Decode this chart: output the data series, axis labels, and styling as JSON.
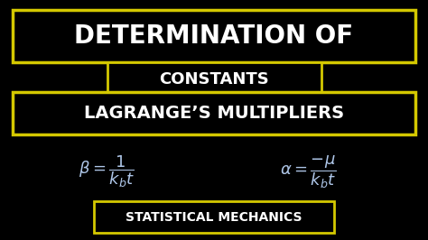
{
  "background_color": "#000000",
  "title_text": "DETERMINATION OF",
  "title_color": "#ffffff",
  "title_box_color": "#d4c800",
  "constants_text": "CONSTANTS",
  "constants_color": "#ffffff",
  "constants_box_color": "#d4c800",
  "lagrange_text": "LAGRANGE’S MULTIPLIERS",
  "lagrange_color": "#ffffff",
  "lagrange_box_color": "#d4c800",
  "formula1": "$\\beta = \\dfrac{1}{k_b t}$",
  "formula2": "$\\alpha = \\dfrac{-\\mu}{k_b t}$",
  "formula_color": "#aec6e8",
  "bottom_text": "STATISTICAL MECHANICS",
  "bottom_color": "#ffffff",
  "bottom_box_color": "#d4c800"
}
